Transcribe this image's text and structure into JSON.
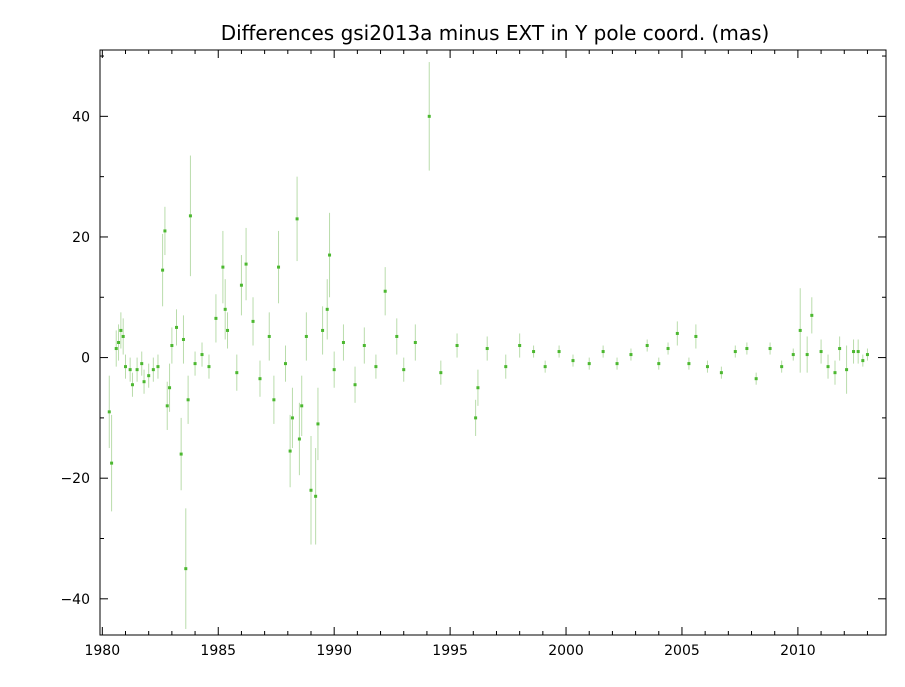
{
  "chart_data": {
    "type": "scatter",
    "title": "Differences gsi2013a minus EXT in Y pole coord. (mas)",
    "xlabel": "",
    "ylabel": "",
    "xlim": [
      1979.9,
      2013.8
    ],
    "ylim": [
      -46,
      51
    ],
    "x_ticks": [
      1980,
      1985,
      1990,
      1995,
      2000,
      2005,
      2010
    ],
    "y_ticks": [
      -40,
      -20,
      0,
      20,
      40
    ],
    "y_tick_labels": [
      "−40",
      "−20",
      "0",
      "20",
      "40"
    ],
    "grid": false,
    "legend": "none",
    "colors": {
      "points": "#4cb830",
      "error_bars": "#b9dcab",
      "axes": "#000000"
    },
    "series": [
      {
        "points": [
          {
            "x": 1980.3,
            "y": -9,
            "e": 6
          },
          {
            "x": 1980.4,
            "y": -17.5,
            "e": 8
          },
          {
            "x": 1980.6,
            "y": 1.5,
            "e": 3
          },
          {
            "x": 1980.7,
            "y": 2.5,
            "e": 3
          },
          {
            "x": 1980.8,
            "y": 4.5,
            "e": 3
          },
          {
            "x": 1980.9,
            "y": 3.5,
            "e": 3
          },
          {
            "x": 1981.0,
            "y": -1.5,
            "e": 2
          },
          {
            "x": 1981.2,
            "y": -2,
            "e": 2
          },
          {
            "x": 1981.3,
            "y": -4.5,
            "e": 2
          },
          {
            "x": 1981.5,
            "y": -2,
            "e": 2
          },
          {
            "x": 1981.7,
            "y": -1,
            "e": 2
          },
          {
            "x": 1981.8,
            "y": -4,
            "e": 2
          },
          {
            "x": 1982.0,
            "y": -3,
            "e": 2
          },
          {
            "x": 1982.2,
            "y": -2,
            "e": 2
          },
          {
            "x": 1982.4,
            "y": -1.5,
            "e": 2
          },
          {
            "x": 1982.6,
            "y": 14.5,
            "e": 6
          },
          {
            "x": 1982.7,
            "y": 21,
            "e": 4
          },
          {
            "x": 1982.8,
            "y": -8,
            "e": 4
          },
          {
            "x": 1982.9,
            "y": -5,
            "e": 4
          },
          {
            "x": 1983.0,
            "y": 2,
            "e": 3
          },
          {
            "x": 1983.2,
            "y": 5,
            "e": 3
          },
          {
            "x": 1983.4,
            "y": -16,
            "e": 6
          },
          {
            "x": 1983.5,
            "y": 3,
            "e": 4
          },
          {
            "x": 1983.6,
            "y": -35,
            "e": 10
          },
          {
            "x": 1983.7,
            "y": -7,
            "e": 4
          },
          {
            "x": 1983.8,
            "y": 23.5,
            "e": 10
          },
          {
            "x": 1984.0,
            "y": -1,
            "e": 2
          },
          {
            "x": 1984.3,
            "y": 0.5,
            "e": 2
          },
          {
            "x": 1984.6,
            "y": -1.5,
            "e": 2
          },
          {
            "x": 1984.9,
            "y": 6.5,
            "e": 4
          },
          {
            "x": 1985.2,
            "y": 15,
            "e": 6
          },
          {
            "x": 1985.3,
            "y": 8,
            "e": 5
          },
          {
            "x": 1985.4,
            "y": 4.5,
            "e": 3
          },
          {
            "x": 1985.8,
            "y": -2.5,
            "e": 3
          },
          {
            "x": 1986.0,
            "y": 12,
            "e": 5
          },
          {
            "x": 1986.2,
            "y": 15.5,
            "e": 6
          },
          {
            "x": 1986.5,
            "y": 6,
            "e": 4
          },
          {
            "x": 1986.8,
            "y": -3.5,
            "e": 3
          },
          {
            "x": 1987.2,
            "y": 3.5,
            "e": 4
          },
          {
            "x": 1987.4,
            "y": -7,
            "e": 4
          },
          {
            "x": 1987.6,
            "y": 15,
            "e": 6
          },
          {
            "x": 1987.9,
            "y": -1,
            "e": 3
          },
          {
            "x": 1988.1,
            "y": -15.5,
            "e": 6
          },
          {
            "x": 1988.2,
            "y": -10,
            "e": 5
          },
          {
            "x": 1988.4,
            "y": 23,
            "e": 7
          },
          {
            "x": 1988.5,
            "y": -13.5,
            "e": 6
          },
          {
            "x": 1988.6,
            "y": -8,
            "e": 5
          },
          {
            "x": 1988.8,
            "y": 3.5,
            "e": 4
          },
          {
            "x": 1989.0,
            "y": -22,
            "e": 9
          },
          {
            "x": 1989.2,
            "y": -23,
            "e": 8
          },
          {
            "x": 1989.3,
            "y": -11,
            "e": 6
          },
          {
            "x": 1989.5,
            "y": 4.5,
            "e": 4
          },
          {
            "x": 1989.7,
            "y": 8,
            "e": 5
          },
          {
            "x": 1989.8,
            "y": 17,
            "e": 7
          },
          {
            "x": 1990.0,
            "y": -2,
            "e": 3
          },
          {
            "x": 1990.4,
            "y": 2.5,
            "e": 3
          },
          {
            "x": 1990.9,
            "y": -4.5,
            "e": 3
          },
          {
            "x": 1991.3,
            "y": 2,
            "e": 3
          },
          {
            "x": 1991.8,
            "y": -1.5,
            "e": 2
          },
          {
            "x": 1992.2,
            "y": 11,
            "e": 4
          },
          {
            "x": 1992.7,
            "y": 3.5,
            "e": 3
          },
          {
            "x": 1993.0,
            "y": -2,
            "e": 2
          },
          {
            "x": 1993.5,
            "y": 2.5,
            "e": 3
          },
          {
            "x": 1994.1,
            "y": 40,
            "e": 9
          },
          {
            "x": 1994.6,
            "y": -2.5,
            "e": 2
          },
          {
            "x": 1995.3,
            "y": 2,
            "e": 2
          },
          {
            "x": 1996.1,
            "y": -10,
            "e": 3
          },
          {
            "x": 1996.2,
            "y": -5,
            "e": 3
          },
          {
            "x": 1996.6,
            "y": 1.5,
            "e": 2
          },
          {
            "x": 1997.4,
            "y": -1.5,
            "e": 2
          },
          {
            "x": 1998.0,
            "y": 2,
            "e": 2
          },
          {
            "x": 1998.6,
            "y": 1,
            "e": 1
          },
          {
            "x": 1999.1,
            "y": -1.5,
            "e": 1
          },
          {
            "x": 1999.7,
            "y": 1,
            "e": 1
          },
          {
            "x": 2000.3,
            "y": -0.5,
            "e": 1
          },
          {
            "x": 2001.0,
            "y": -1,
            "e": 1
          },
          {
            "x": 2001.6,
            "y": 1,
            "e": 1
          },
          {
            "x": 2002.2,
            "y": -1,
            "e": 1
          },
          {
            "x": 2002.8,
            "y": 0.5,
            "e": 1
          },
          {
            "x": 2003.5,
            "y": 2,
            "e": 1
          },
          {
            "x": 2004.0,
            "y": -1,
            "e": 1
          },
          {
            "x": 2004.4,
            "y": 1.5,
            "e": 1
          },
          {
            "x": 2004.8,
            "y": 4,
            "e": 2
          },
          {
            "x": 2005.3,
            "y": -1,
            "e": 1
          },
          {
            "x": 2005.6,
            "y": 3.5,
            "e": 2
          },
          {
            "x": 2006.1,
            "y": -1.5,
            "e": 1
          },
          {
            "x": 2006.7,
            "y": -2.5,
            "e": 1
          },
          {
            "x": 2007.3,
            "y": 1,
            "e": 1
          },
          {
            "x": 2007.8,
            "y": 1.5,
            "e": 1
          },
          {
            "x": 2008.2,
            "y": -3.5,
            "e": 1
          },
          {
            "x": 2008.8,
            "y": 1.5,
            "e": 1
          },
          {
            "x": 2009.3,
            "y": -1.5,
            "e": 1
          },
          {
            "x": 2009.8,
            "y": 0.5,
            "e": 1
          },
          {
            "x": 2010.1,
            "y": 4.5,
            "e": 7
          },
          {
            "x": 2010.4,
            "y": 0.5,
            "e": 3
          },
          {
            "x": 2010.6,
            "y": 7,
            "e": 3
          },
          {
            "x": 2011.0,
            "y": 1,
            "e": 2
          },
          {
            "x": 2011.3,
            "y": -1.5,
            "e": 2
          },
          {
            "x": 2011.6,
            "y": -2.5,
            "e": 2
          },
          {
            "x": 2011.8,
            "y": 1.5,
            "e": 2
          },
          {
            "x": 2012.1,
            "y": -2,
            "e": 4
          },
          {
            "x": 2012.4,
            "y": 1,
            "e": 2
          },
          {
            "x": 2012.6,
            "y": 1,
            "e": 2
          },
          {
            "x": 2012.8,
            "y": -0.5,
            "e": 1
          },
          {
            "x": 2013.0,
            "y": 0.5,
            "e": 1
          }
        ]
      }
    ]
  }
}
